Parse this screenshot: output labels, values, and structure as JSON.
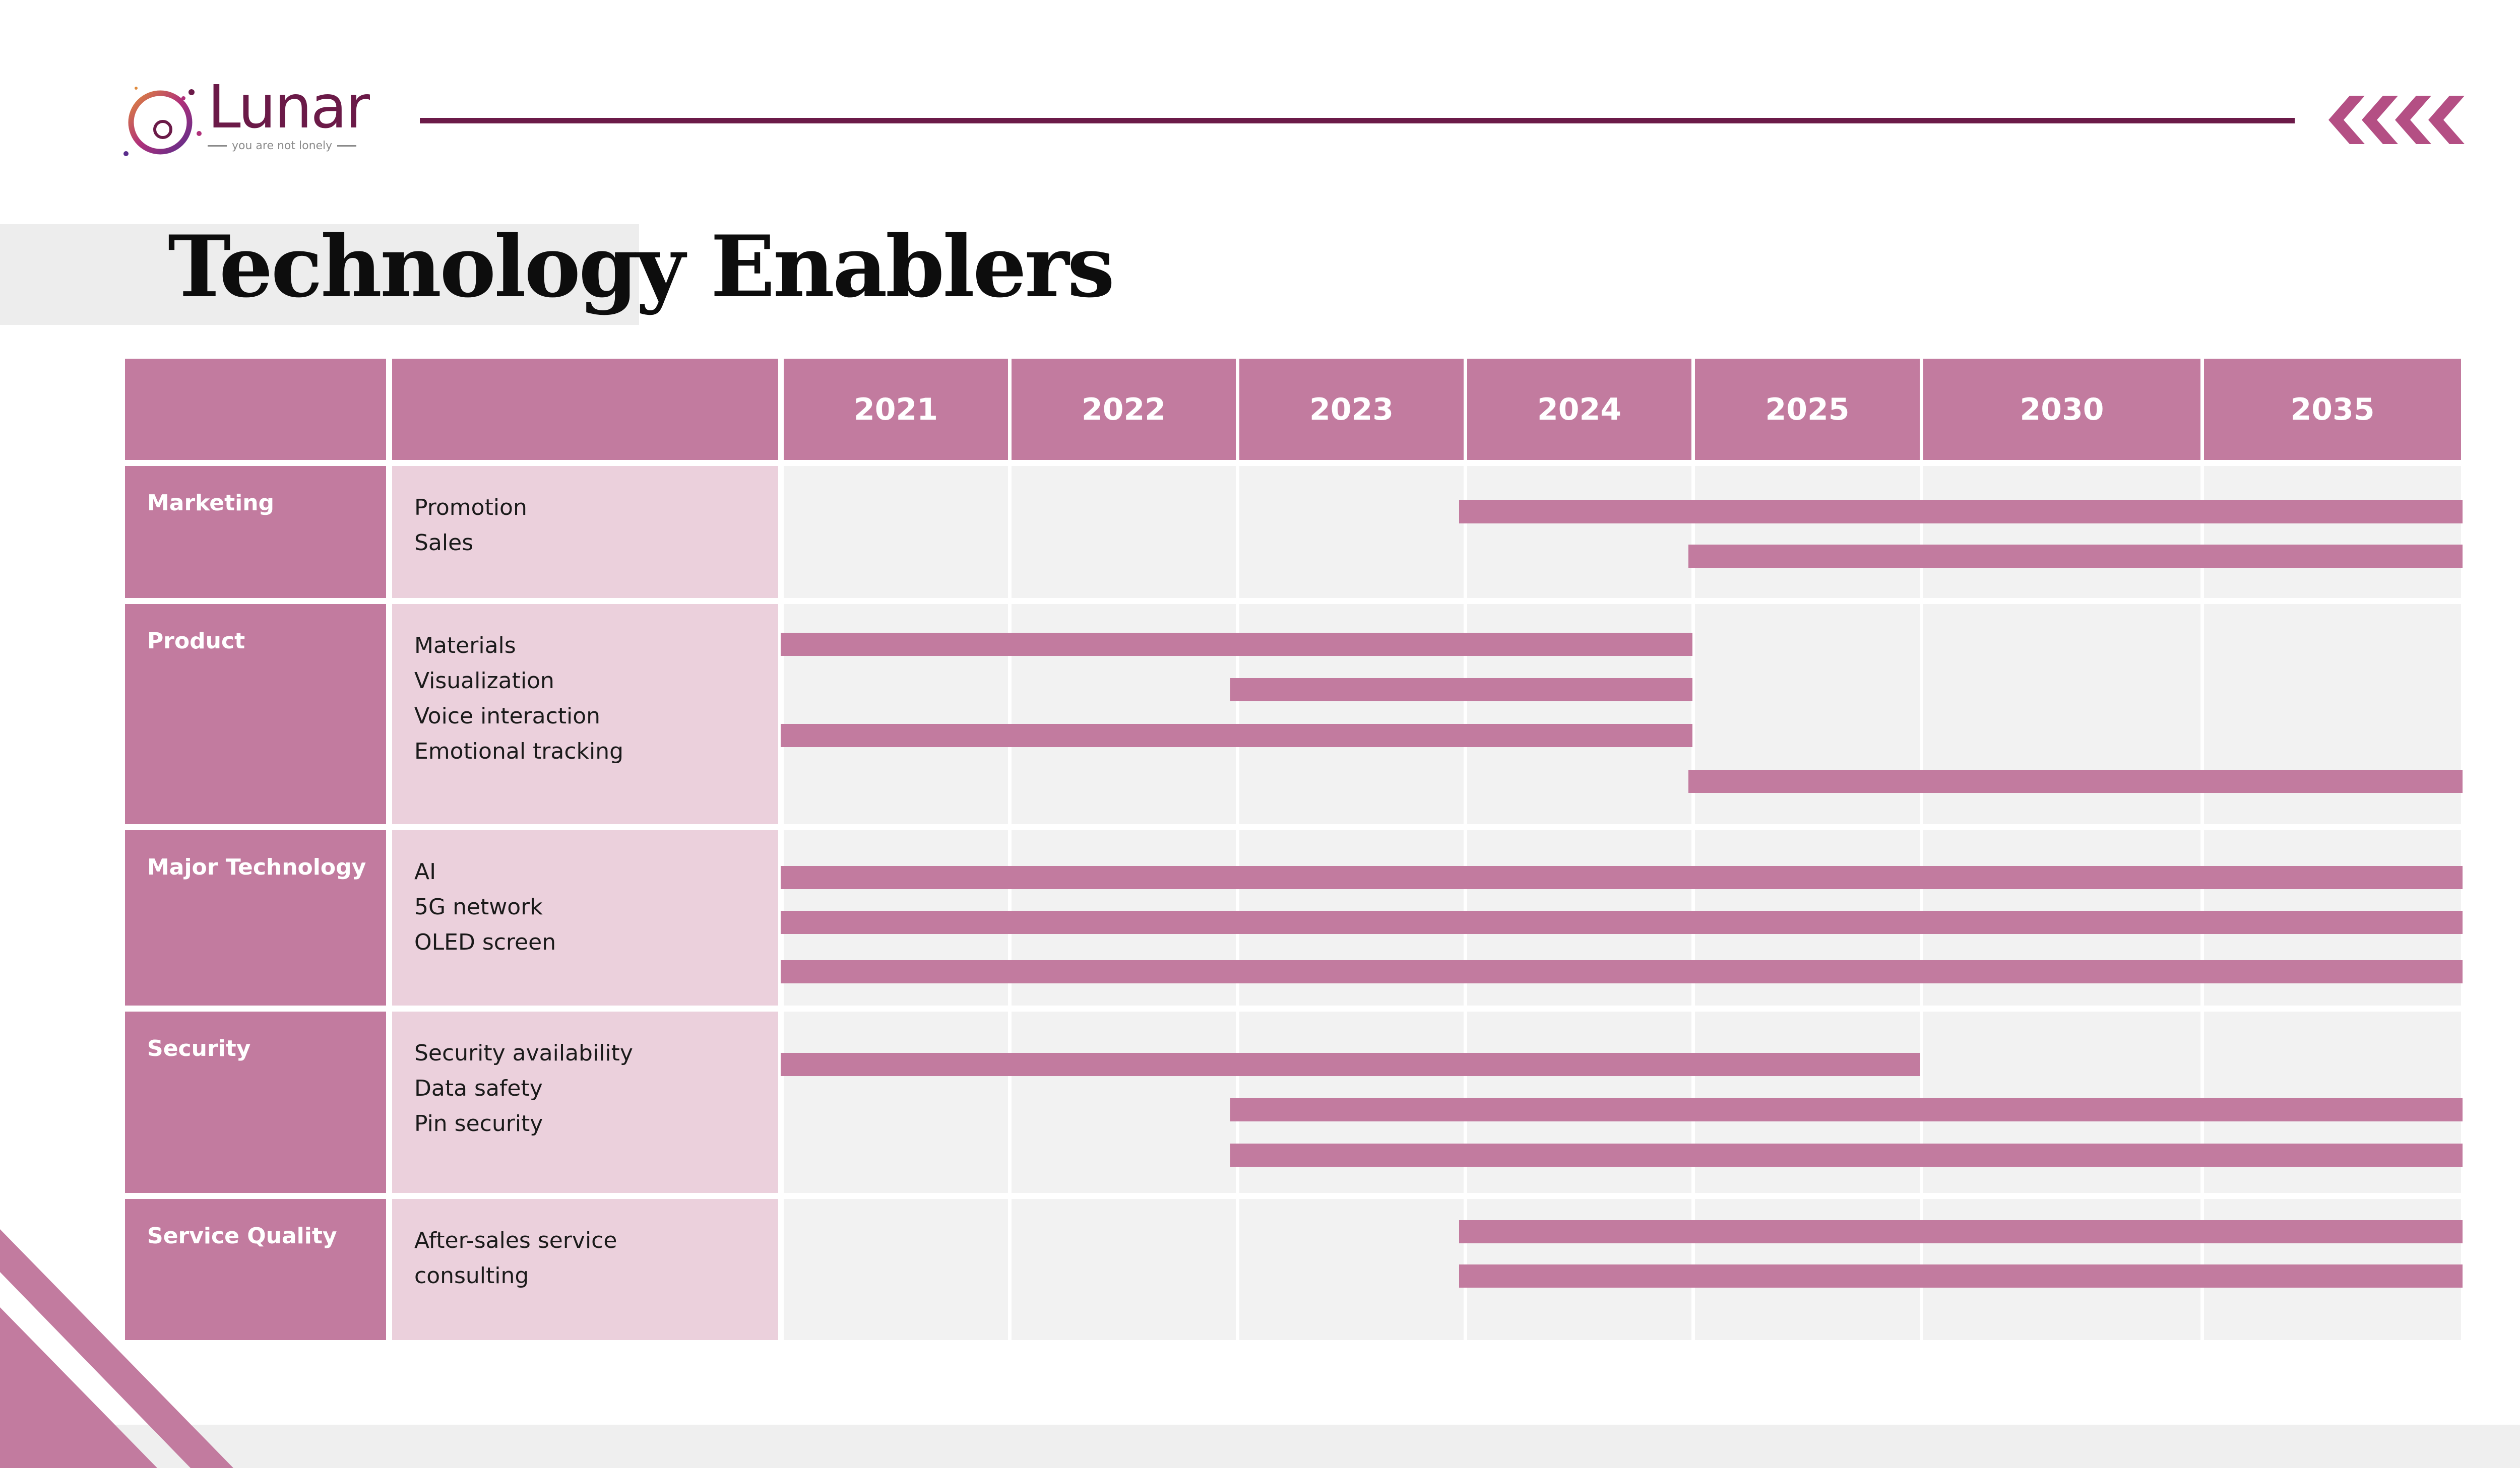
{
  "brand": {
    "name": "Lunar",
    "tagline": "you are not lonely",
    "primary_color": "#6b1a48",
    "accent_color": "#c27b9f"
  },
  "page": {
    "title": "Technology Enablers"
  },
  "timeline": {
    "years": [
      "2021",
      "2022",
      "2023",
      "2024",
      "2025",
      "2030",
      "2035"
    ],
    "rows": [
      {
        "category": "Marketing",
        "items": [
          {
            "label": "Promotion",
            "start": "2024",
            "end": "2035"
          },
          {
            "label": "Sales",
            "start": "2025",
            "end": "2035"
          }
        ]
      },
      {
        "category": "Product",
        "items": [
          {
            "label": "Materials",
            "start": "2021",
            "end": "2024"
          },
          {
            "label": "Visualization",
            "start": "2023",
            "end": "2024"
          },
          {
            "label": "Voice interaction",
            "start": "2021",
            "end": "2024"
          },
          {
            "label": "Emotional tracking",
            "start": "2025",
            "end": "2035"
          }
        ]
      },
      {
        "category": "Major Technology",
        "items": [
          {
            "label": "AI",
            "start": "2021",
            "end": "2035"
          },
          {
            "label": "5G network",
            "start": "2021",
            "end": "2035"
          },
          {
            "label": "OLED screen",
            "start": "2021",
            "end": "2035"
          }
        ]
      },
      {
        "category": "Security",
        "items": [
          {
            "label": "Security availability",
            "start": "2021",
            "end": "2025"
          },
          {
            "label": "Data safety",
            "start": "2023",
            "end": "2035"
          },
          {
            "label": "Pin security",
            "start": "2023",
            "end": "2035"
          }
        ]
      },
      {
        "category": "Service Quality",
        "items": [
          {
            "label": "After-sales service",
            "start": "2024",
            "end": "2035"
          },
          {
            "label": "consulting",
            "start": "2024",
            "end": "2035"
          }
        ]
      }
    ]
  }
}
